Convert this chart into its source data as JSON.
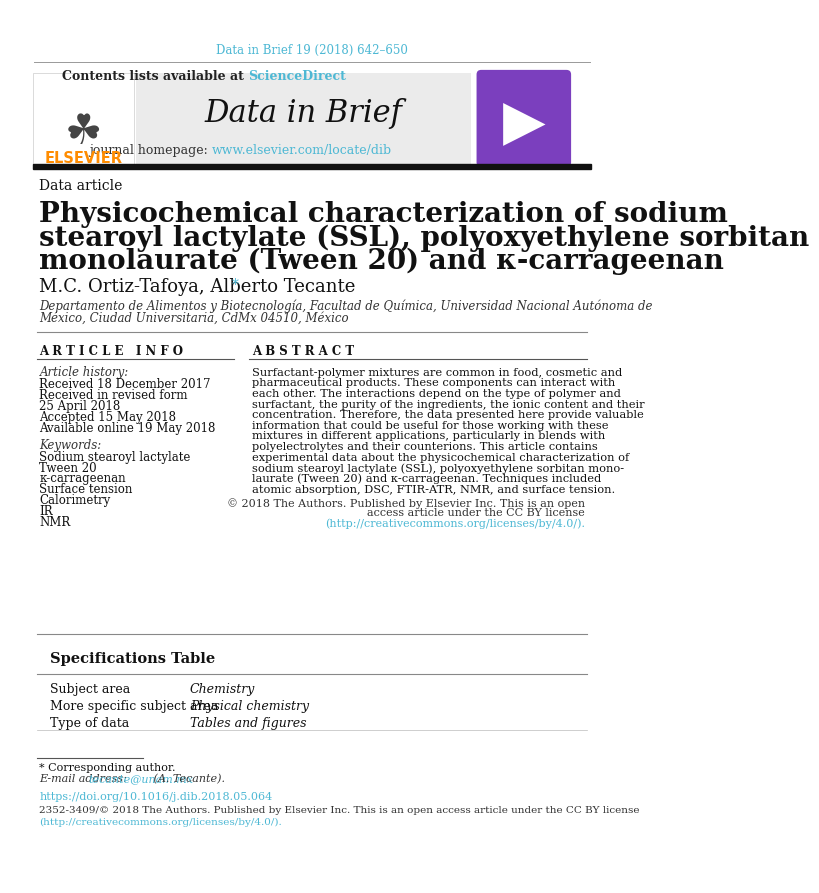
{
  "journal_ref": "Data in Brief 19 (2018) 642–650",
  "journal_ref_color": "#4db8d4",
  "header_bg": "#e8e8e8",
  "contents_text": "Contents lists available at ",
  "science_direct": "ScienceDirect",
  "science_direct_color": "#4db8d4",
  "journal_name": "Data in Brief",
  "journal_homepage_label": "journal homepage: ",
  "journal_homepage_url": "www.elsevier.com/locate/dib",
  "journal_homepage_color": "#4db8d4",
  "elsevier_color": "#ff8c00",
  "article_type": "Data article",
  "title_line1": "Physicochemical characterization of sodium",
  "title_line2": "stearoyl lactylate (SSL), polyoxyethylene sorbitan",
  "title_line3": "monolaurate (Tween 20) and κ-carrageenan",
  "authors": "M.C. Ortiz-Tafoya, Alberto Tecante ",
  "author_asterisk": "*",
  "author_asterisk_color": "#4db8d4",
  "affiliation_line1": "Departamento de Alimentos y Biotecnología, Facultad de Química, Universidad Nacional Autónoma de",
  "affiliation_line2": "México, Ciudad Universitaria, CdMx 04510, México",
  "article_info_header": "A R T I C L E   I N F O",
  "abstract_header": "A B S T R A C T",
  "article_history_label": "Article history:",
  "received1": "Received 18 December 2017",
  "revised": "Received in revised form",
  "revised_date": "25 April 2018",
  "accepted": "Accepted 15 May 2018",
  "available": "Available online 19 May 2018",
  "keywords_label": "Keywords:",
  "keyword1": "Sodium stearoyl lactylate",
  "keyword2": "Tween 20",
  "keyword3": "κ-carrageenan",
  "keyword4": "Surface tension",
  "keyword5": "Calorimetry",
  "keyword6": "IR",
  "keyword7": "NMR",
  "abstract_lines": [
    "Surfactant-polymer mixtures are common in food, cosmetic and",
    "pharmaceutical products. These components can interact with",
    "each other. The interactions depend on the type of polymer and",
    "surfactant, the purity of the ingredients, the ionic content and their",
    "concentration. Therefore, the data presented here provide valuable",
    "information that could be useful for those working with these",
    "mixtures in different applications, particularly in blends with",
    "polyelectrolytes and their counterions. This article contains",
    "experimental data about the physicochemical characterization of",
    "sodium stearoyl lactylate (SSL), polyoxyethylene sorbitan mono-",
    "laurate (Tween 20) and κ-carrageenan. Techniques included",
    "atomic absorption, DSC, FTIR-ATR, NMR, and surface tension."
  ],
  "copyright_line1": "© 2018 The Authors. Published by Elsevier Inc. This is an open",
  "copyright_line2": "access article under the CC BY license",
  "license_url": "(http://creativecommons.org/licenses/by/4.0/).",
  "license_url_color": "#4db8d4",
  "spec_table_title": "Specifications Table",
  "spec_rows": [
    [
      "Subject area",
      "Chemistry"
    ],
    [
      "More specific subject area",
      "Physical chemistry"
    ],
    [
      "Type of data",
      "Tables and figures"
    ]
  ],
  "footnote_asterisk": "* Corresponding author.",
  "footnote_email_label": "E-mail address: ",
  "footnote_email": "tecante@unam.mx",
  "footnote_email_color": "#4db8d4",
  "footnote_email_suffix": " (A. Tecante).",
  "doi_url": "https://doi.org/10.1016/j.dib.2018.05.064",
  "doi_color": "#4db8d4",
  "bottom_text1": "2352-3409/© 2018 The Authors. Published by Elsevier Inc. This is an open access article under the CC BY license",
  "bottom_text2": "(http://creativecommons.org/licenses/by/4.0/).",
  "bottom_text2_color": "#4db8d4",
  "bg_color": "#ffffff",
  "text_color": "#000000"
}
